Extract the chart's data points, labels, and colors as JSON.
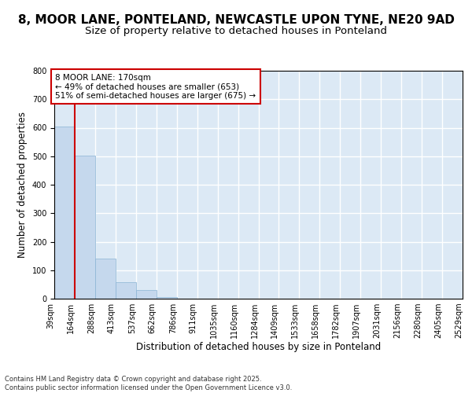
{
  "title_line1": "8, MOOR LANE, PONTELAND, NEWCASTLE UPON TYNE, NE20 9AD",
  "title_line2": "Size of property relative to detached houses in Ponteland",
  "xlabel": "Distribution of detached houses by size in Ponteland",
  "ylabel": "Number of detached properties",
  "bar_values": [
    605,
    503,
    140,
    57,
    30,
    5,
    0,
    0,
    0,
    0,
    0,
    0,
    0,
    0,
    0,
    0,
    0,
    0,
    0,
    0
  ],
  "n_bins": 20,
  "categories": [
    "39sqm",
    "164sqm",
    "288sqm",
    "413sqm",
    "537sqm",
    "662sqm",
    "786sqm",
    "911sqm",
    "1035sqm",
    "1160sqm",
    "1284sqm",
    "1409sqm",
    "1533sqm",
    "1658sqm",
    "1782sqm",
    "1907sqm",
    "2031sqm",
    "2156sqm",
    "2280sqm",
    "2405sqm",
    "2529sqm"
  ],
  "bar_color": "#c5d8ed",
  "bar_edge_color": "#8ab4d4",
  "background_color": "#dce9f5",
  "grid_color": "#ffffff",
  "annotation_text": "8 MOOR LANE: 170sqm\n← 49% of detached houses are smaller (653)\n51% of semi-detached houses are larger (675) →",
  "annotation_box_color": "#ffffff",
  "annotation_box_edge": "#cc0000",
  "vline_color": "#cc0000",
  "ylim": [
    0,
    800
  ],
  "yticks": [
    0,
    100,
    200,
    300,
    400,
    500,
    600,
    700,
    800
  ],
  "footer_text": "Contains HM Land Registry data © Crown copyright and database right 2025.\nContains public sector information licensed under the Open Government Licence v3.0.",
  "title_fontsize": 11,
  "subtitle_fontsize": 9.5,
  "tick_fontsize": 7,
  "label_fontsize": 8.5
}
